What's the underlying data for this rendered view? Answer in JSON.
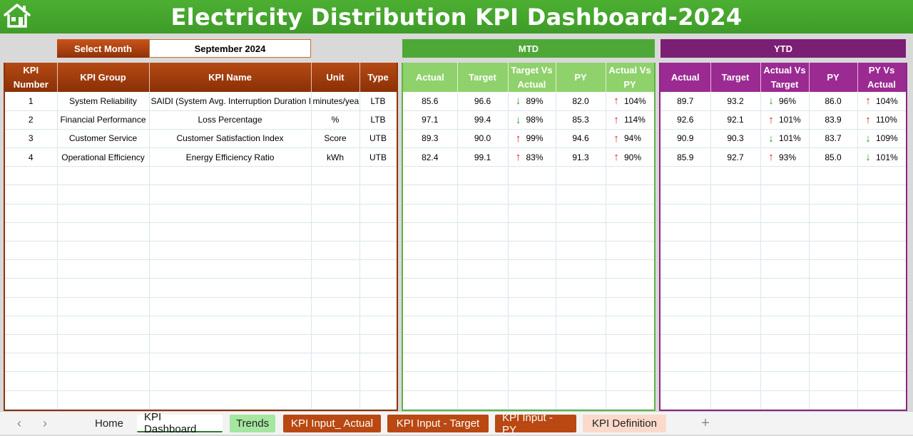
{
  "title": "Electricity Distribution KPI Dashboard-2024",
  "colors": {
    "title_green": "#4caf32",
    "brand_brown": "#8f3208",
    "mtd_green": "#4ea837",
    "ytd_purple": "#7a1f74",
    "arrow_up": "#e01b1b",
    "arrow_down": "#2e9b2e"
  },
  "icons": {
    "home": "home-icon",
    "up": "arrow-up-icon",
    "down": "arrow-down-icon"
  },
  "select_month": {
    "label": "Select Month",
    "value": "September 2024"
  },
  "mtd_label": "MTD",
  "ytd_label": "YTD",
  "kpi_headers": {
    "number": "KPI Number",
    "group": "KPI Group",
    "name": "KPI Name",
    "unit": "Unit",
    "type": "Type"
  },
  "mtd_headers": {
    "actual": "Actual",
    "target": "Target",
    "tva": "Target Vs Actual",
    "py": "PY",
    "avp": "Actual Vs PY"
  },
  "ytd_headers": {
    "actual": "Actual",
    "target": "Target",
    "avt": "Actual Vs Target",
    "py": "PY",
    "pva": "PY Vs Actual"
  },
  "kpis": [
    {
      "number": "1",
      "group": "System Reliability",
      "name": "SAIDI (System Avg. Interruption Duration Index)",
      "unit": "minutes/year",
      "type": "LTB"
    },
    {
      "number": "2",
      "group": "Financial Performance",
      "name": "Loss Percentage",
      "unit": "%",
      "type": "LTB"
    },
    {
      "number": "3",
      "group": "Customer Service",
      "name": "Customer Satisfaction Index",
      "unit": "Score",
      "type": "UTB"
    },
    {
      "number": "4",
      "group": "Operational Efficiency",
      "name": "Energy Efficiency Ratio",
      "unit": "kWh",
      "type": "UTB"
    }
  ],
  "mtd": [
    {
      "actual": "85.6",
      "target": "96.6",
      "tva": "89%",
      "tva_dir": "down",
      "py": "82.0",
      "avp": "104%",
      "avp_dir": "up"
    },
    {
      "actual": "97.1",
      "target": "99.4",
      "tva": "98%",
      "tva_dir": "down",
      "py": "85.3",
      "avp": "114%",
      "avp_dir": "up"
    },
    {
      "actual": "89.3",
      "target": "90.0",
      "tva": "99%",
      "tva_dir": "up",
      "py": "94.6",
      "avp": "94%",
      "avp_dir": "up"
    },
    {
      "actual": "82.4",
      "target": "99.1",
      "tva": "83%",
      "tva_dir": "up",
      "py": "91.3",
      "avp": "90%",
      "avp_dir": "up"
    }
  ],
  "ytd": [
    {
      "actual": "89.7",
      "target": "93.2",
      "avt": "96%",
      "avt_dir": "down",
      "py": "86.0",
      "pva": "104%",
      "pva_dir": "up"
    },
    {
      "actual": "92.6",
      "target": "92.1",
      "avt": "101%",
      "avt_dir": "up",
      "py": "83.9",
      "pva": "110%",
      "pva_dir": "up"
    },
    {
      "actual": "90.9",
      "target": "90.3",
      "avt": "101%",
      "avt_dir": "down",
      "py": "83.7",
      "pva": "109%",
      "pva_dir": "down"
    },
    {
      "actual": "85.9",
      "target": "92.7",
      "avt": "93%",
      "avt_dir": "up",
      "py": "85.0",
      "pva": "101%",
      "pva_dir": "down"
    }
  ],
  "sheet_tabs": {
    "home": "Home",
    "active": "KPI Dashboard",
    "trends": "Trends",
    "input_actual": "KPI Input_ Actual",
    "input_target": "KPI Input - Target",
    "input_py": "KPI Input - PY",
    "definition": "KPI Definition",
    "add": "+",
    "prev": "‹",
    "next": "›"
  }
}
